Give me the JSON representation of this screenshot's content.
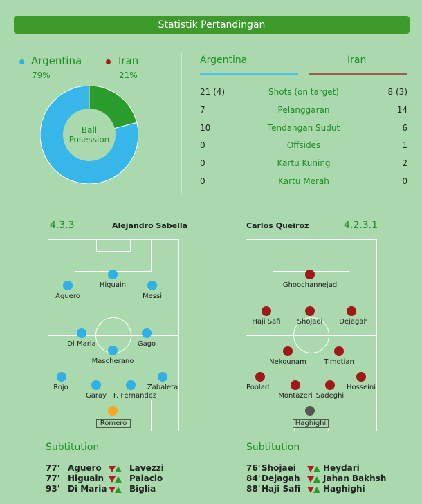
{
  "title": "Statistik Pertandingan",
  "possession": {
    "label": "Ball\nPosession",
    "teams": [
      {
        "name": "Argentina",
        "pct": "79%",
        "value": 79,
        "color": "#37b6e9"
      },
      {
        "name": "Iran",
        "pct": "21%",
        "value": 21,
        "color": "#2a9c2a"
      }
    ],
    "dot_colors": [
      "#2fb1e6",
      "#a01818"
    ]
  },
  "stats": {
    "home": "Argentina",
    "away": "Iran",
    "rows": [
      {
        "home": "21 (4)",
        "label": "Shots (on target)",
        "away": "8 (3)"
      },
      {
        "home": "7",
        "label": "Pelanggaran",
        "away": "14"
      },
      {
        "home": "10",
        "label": "Tendangan Sudut",
        "away": "6"
      },
      {
        "home": "0",
        "label": "Offsides",
        "away": "1"
      },
      {
        "home": "0",
        "label": "Kartu Kuning",
        "away": "2"
      },
      {
        "home": "0",
        "label": "Kartu Merah",
        "away": "0"
      }
    ]
  },
  "lineups": {
    "home": {
      "formation": "4.3.3",
      "coach": "Alejandro Sabella",
      "players": [
        "Higuain",
        "Aguero",
        "Messi",
        "Di Maria",
        "Gago",
        "Mascherano",
        "Rojo",
        "Garay",
        "F. Fernandez",
        "Zabaleta",
        "Romero"
      ]
    },
    "away": {
      "formation": "4.2.3.1",
      "coach": "Carlos Queiroz",
      "players": [
        "Ghoochannejad",
        "Haji Safi",
        "Shojaei",
        "Dejagah",
        "Nekounam",
        "Timotian",
        "Pooladi",
        "Montazeri",
        "Sadeghi",
        "Hosseini",
        "Haghighi"
      ]
    }
  },
  "substitutions": {
    "title": "Subtitution",
    "home": [
      {
        "minute": "77'",
        "out": "Aguero",
        "in": "Lavezzi"
      },
      {
        "minute": "77'",
        "out": "Higuain",
        "in": "Palacio"
      },
      {
        "minute": "93'",
        "out": "Di Maria",
        "in": "Biglia"
      }
    ],
    "away": [
      {
        "minute": "76'",
        "out": "Shojaei",
        "in": "Heydari"
      },
      {
        "minute": "84'",
        "out": "Dejagah",
        "in": "Jahan Bakhsh"
      },
      {
        "minute": "88'",
        "out": "Haji Safi",
        "in": "Haghighi"
      }
    ]
  }
}
